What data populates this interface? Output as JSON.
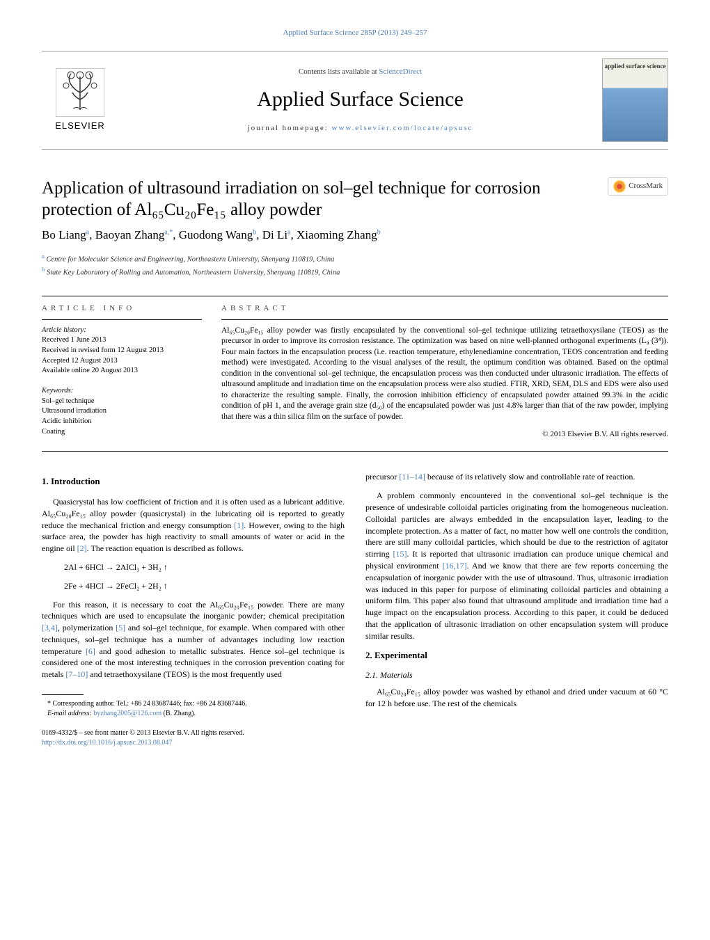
{
  "top_link": "Applied Surface Science 285P (2013) 249–257",
  "header": {
    "contents_available": "Contents lists available at ",
    "sciencedirect": "ScienceDirect",
    "journal_title": "Applied Surface Science",
    "homepage_label": "journal homepage: ",
    "homepage_url": "www.elsevier.com/locate/apsusc",
    "elsevier": "ELSEVIER",
    "cover_text": "applied surface science"
  },
  "title": "Application of ultrasound irradiation on sol–gel technique for corrosion protection of Al₆₅Cu₂₀Fe₁₅ alloy powder",
  "crossmark": "CrossMark",
  "authors_html": "Bo Liang<sup>a</sup>, Baoyan Zhang<sup>a,*</sup>, Guodong Wang<sup>b</sup>, Di Li<sup>a</sup>, Xiaoming Zhang<sup>b</sup>",
  "affiliations": {
    "a": "Centre for Molecular Science and Engineering, Northeastern University, Shenyang 110819, China",
    "b": "State Key Laboratory of Rolling and Automation, Northeastern University, Shenyang 110819, China"
  },
  "article_info": {
    "header": "ARTICLE INFO",
    "history_label": "Article history:",
    "history": [
      "Received 1 June 2013",
      "Received in revised form 12 August 2013",
      "Accepted 12 August 2013",
      "Available online 20 August 2013"
    ],
    "keywords_label": "Keywords:",
    "keywords": [
      "Sol–gel technique",
      "Ultrasound irradiation",
      "Acidic inhibition",
      "Coating"
    ]
  },
  "abstract": {
    "header": "ABSTRACT",
    "text": "Al₆₅Cu₂₀Fe₁₅ alloy powder was firstly encapsulated by the conventional sol–gel technique utilizing tetraethoxysilane (TEOS) as the precursor in order to improve its corrosion resistance. The optimization was based on nine well-planned orthogonal experiments (L₉ (3⁴)). Four main factors in the encapsulation process (i.e. reaction temperature, ethylenediamine concentration, TEOS concentration and feeding method) were investigated. According to the visual analyses of the result, the optimum condition was obtained. Based on the optimal condition in the conventional sol–gel technique, the encapsulation process was then conducted under ultrasonic irradiation. The effects of ultrasound amplitude and irradiation time on the encapsulation process were also studied. FTIR, XRD, SEM, DLS and EDS were also used to characterize the resulting sample. Finally, the corrosion inhibition efficiency of encapsulated powder attained 99.3% in the acidic condition of pH 1, and the average grain size (d₅₀) of the encapsulated powder was just 4.8% larger than that of the raw powder, implying that there was a thin silica film on the surface of powder.",
    "copyright": "© 2013 Elsevier B.V. All rights reserved."
  },
  "body": {
    "intro_heading": "1.  Introduction",
    "intro_p1": "Quasicrystal has low coefficient of friction and it is often used as a lubricant additive. Al₆₅Cu₂₀Fe₁₅ alloy powder (quasicrystal) in the lubricating oil is reported to greatly reduce the mechanical friction and energy consumption ",
    "ref1": "[1]",
    "intro_p1b": ". However, owing to the high surface area, the powder has high reactivity to small amounts of water or acid in the engine oil ",
    "ref2": "[2]",
    "intro_p1c": ". The reaction equation is described as follows.",
    "eq1": "2Al + 6HCl → 2AlCl₃ + 3H₂ ↑",
    "eq2": "2Fe + 4HCl → 2FeCl₂ + 2H₂ ↑",
    "intro_p2a": "For this reason, it is necessary to coat the Al₆₅Cu₂₀Fe₁₅ powder. There are many techniques which are used to encapsulate the inorganic powder; chemical precipitation ",
    "ref34": "[3,4]",
    "intro_p2b": ", polymerization ",
    "ref5": "[5]",
    "intro_p2c": " and sol–gel technique, for example. When compared with other techniques, sol–gel technique has a number of advantages including low reaction temperature ",
    "ref6": "[6]",
    "intro_p2d": " and good adhesion to metallic substrates. Hence sol–gel technique is considered one of the most interesting techniques in the corrosion prevention coating for metals ",
    "ref710": "[7–10]",
    "intro_p2e": " and tetraethoxysilane (TEOS) is the most frequently used",
    "col2_p1a": "precursor ",
    "ref1114": "[11–14]",
    "col2_p1b": " because of its relatively slow and controllable rate of reaction.",
    "col2_p2a": "A problem commonly encountered in the conventional sol–gel technique is the presence of undesirable colloidal particles originating from the homogeneous nucleation. Colloidal particles are always embedded in the encapsulation layer, leading to the incomplete protection. As a matter of fact, no matter how well one controls the condition, there are still many colloidal particles, which should be due to the restriction of agitator stirring ",
    "ref15": "[15]",
    "col2_p2b": ". It is reported that ultrasonic irradiation can produce unique chemical and physical environment ",
    "ref1617": "[16,17]",
    "col2_p2c": ". And we know that there are few reports concerning the encapsulation of inorganic powder with the use of ultrasound. Thus, ultrasonic irradiation was induced in this paper for purpose of eliminating colloidal particles and obtaining a uniform film. This paper also found that ultrasound amplitude and irradiation time had a huge impact on the encapsulation process. According to this paper, it could be deduced that the application of ultrasonic irradiation on other encapsulation system will produce similar results.",
    "exp_heading": "2.  Experimental",
    "materials_heading": "2.1.  Materials",
    "materials_p": "Al₆₅Cu₂₀Fe₁₅ alloy powder was washed by ethanol and dried under vacuum at 60 °C for 12 h before use. The rest of the chemicals"
  },
  "footnote": {
    "corresponding": "* Corresponding author. Tel.: +86 24 83687446; fax: +86 24 83687446.",
    "email_label": "E-mail address: ",
    "email": "byzhang2005@126.com",
    "email_suffix": " (B. Zhang)."
  },
  "bottom": {
    "issn_line": "0169-4332/$ – see front matter © 2013 Elsevier B.V. All rights reserved.",
    "doi": "http://dx.doi.org/10.1016/j.apsusc.2013.08.047"
  }
}
